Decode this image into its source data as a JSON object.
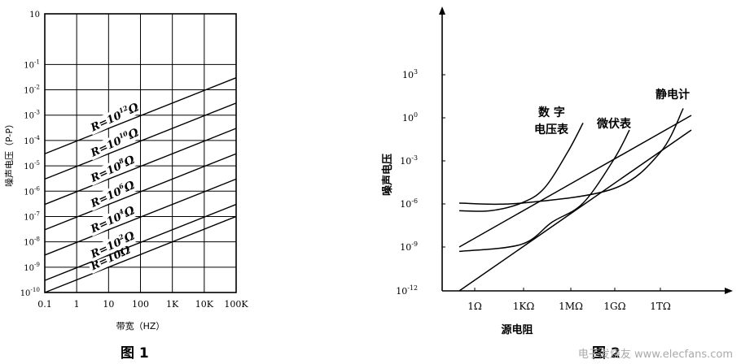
{
  "chart_data": [
    {
      "type": "line",
      "figure_caption": "图 1",
      "xlabel": "带宽（HZ）",
      "ylabel": "噪声电压（P-P）",
      "xscale": "log",
      "yscale": "log",
      "xlim": [
        0.1,
        100000
      ],
      "ylim": [
        1e-10,
        10
      ],
      "grid": true,
      "x_tick_labels": [
        "0.1",
        "1",
        "10",
        "100",
        "1K",
        "10K",
        "100K"
      ],
      "x_tick_values": [
        0.1,
        1,
        10,
        100,
        1000,
        10000,
        100000
      ],
      "y_tick_values": [
        -10,
        -9,
        -8,
        -7,
        -6,
        -5,
        -4,
        -3,
        -2,
        -1,
        1
      ],
      "y_tick_labels": [
        {
          "base": "10",
          "exp": "-10"
        },
        {
          "base": "10",
          "exp": "-9"
        },
        {
          "base": "10",
          "exp": "-8"
        },
        {
          "base": "10",
          "exp": "-7"
        },
        {
          "base": "10",
          "exp": "-6"
        },
        {
          "base": "10",
          "exp": "-5"
        },
        {
          "base": "10",
          "exp": "-4"
        },
        {
          "base": "10",
          "exp": "-3"
        },
        {
          "base": "10",
          "exp": "-2"
        },
        {
          "base": "10",
          "exp": "-1"
        },
        {
          "base": "10",
          "exp": ""
        }
      ],
      "series": [
        {
          "name": "R=10Ω",
          "base": "R=10",
          "exp": "",
          "unit": "Ω",
          "x": [
            0.1,
            100000
          ],
          "y": [
            1e-10,
            1e-07
          ]
        },
        {
          "name": "R=10²Ω",
          "base": "R=10",
          "exp": "2",
          "unit": "Ω",
          "x": [
            0.1,
            100000
          ],
          "y": [
            3e-10,
            3e-07
          ]
        },
        {
          "name": "R=10⁴Ω",
          "base": "R=10",
          "exp": "4",
          "unit": "Ω",
          "x": [
            0.1,
            100000
          ],
          "y": [
            3e-09,
            3e-06
          ]
        },
        {
          "name": "R=10⁶Ω",
          "base": "R=10",
          "exp": "6",
          "unit": "Ω",
          "x": [
            0.1,
            100000
          ],
          "y": [
            3e-08,
            3e-05
          ]
        },
        {
          "name": "R=10⁸Ω",
          "base": "R=10",
          "exp": "8",
          "unit": "Ω",
          "x": [
            0.1,
            100000
          ],
          "y": [
            3e-07,
            0.0003
          ]
        },
        {
          "name": "R=10¹⁰Ω",
          "base": "R=10",
          "exp": "10",
          "unit": "Ω",
          "x": [
            0.1,
            100000
          ],
          "y": [
            3e-06,
            0.003
          ]
        },
        {
          "name": "R=10¹²Ω",
          "base": "R=10",
          "exp": "12",
          "unit": "Ω",
          "x": [
            0.1,
            100000
          ],
          "y": [
            3e-05,
            0.03
          ]
        }
      ]
    },
    {
      "type": "line",
      "figure_caption": "图 2",
      "xlabel": "源电阻",
      "ylabel": "噪声电压",
      "xscale": "log",
      "yscale": "log",
      "grid": false,
      "x_tick_labels": [
        "1Ω",
        "1KΩ",
        "1MΩ",
        "1GΩ",
        "1TΩ"
      ],
      "x_tick_values": [
        1,
        1000,
        1000000,
        1000000000,
        1000000000000
      ],
      "y_tick_values": [
        -12,
        -9,
        -6,
        -3,
        0,
        3
      ],
      "y_tick_labels": [
        {
          "base": "10",
          "exp": "-12"
        },
        {
          "base": "10",
          "exp": "-9"
        },
        {
          "base": "10",
          "exp": "-6"
        },
        {
          "base": "10",
          "exp": "-3"
        },
        {
          "base": "10",
          "exp": "0"
        },
        {
          "base": "10",
          "exp": "3"
        }
      ],
      "annotations": [
        "数  字",
        "电压表",
        "微伏表",
        "静电计"
      ],
      "series": [
        {
          "name": "",
          "x": [
            0.1,
            100000000000000.0
          ],
          "y": [
            1e-12,
            0.1
          ]
        },
        {
          "name": "",
          "x": [
            0.1,
            100000000000000.0
          ],
          "y": [
            1e-09,
            1.0
          ]
        },
        {
          "name": "数  字\n电压表",
          "x": [
            0.1,
            10,
            1000,
            30000,
            1000000,
            10000000
          ],
          "y": [
            3e-07,
            3e-07,
            1e-06,
            1e-05,
            0.003,
            0.3
          ]
        },
        {
          "name": "微伏表",
          "x": [
            0.1,
            1000,
            100000,
            10000000,
            1000000000,
            10000000000
          ],
          "y": [
            5e-10,
            1.5e-09,
            5e-08,
            1e-06,
            0.001,
            0.1
          ]
        },
        {
          "name": "静电计",
          "x": [
            0.1,
            1000,
            1000000000,
            1000000000000,
            30000000000000
          ],
          "y": [
            1e-06,
            1e-06,
            1e-05,
            0.003,
            3.0
          ]
        }
      ]
    }
  ],
  "watermark": "电子发烧友 www.elecfans.com"
}
